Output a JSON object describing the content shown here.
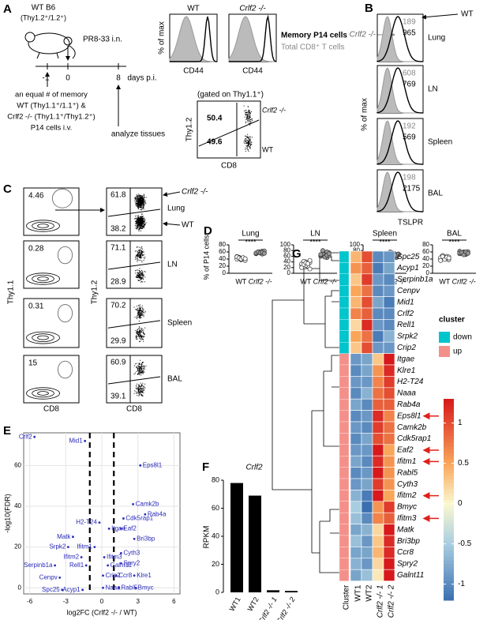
{
  "panels": {
    "A": {
      "label": "A",
      "mouse": "WT B6",
      "mouse_sub": "(Thy1.2⁺/1.2⁺)",
      "treatment": "PR8-33 i.n.",
      "timeline": [
        "-1",
        "0",
        "8"
      ],
      "days": "days p.i.",
      "transfer": [
        "an equal # of memory",
        "WT (Thy1.1⁺/1.1⁺) &",
        "Crlf2 -/- (Thy1.1⁺/Thy1.2⁺)",
        "P14 cells i.v."
      ],
      "analyze": "analyze tissues",
      "hist_titles": [
        "WT",
        "Crlf2 -/-"
      ],
      "hist_ylabel": "% of max",
      "hist_xlabels": [
        "CD44",
        "CD44"
      ],
      "legend": [
        "Memory P14 cells",
        "Total CD8⁺ T cells"
      ],
      "gated": "(gated on Thy1.1⁺)",
      "dot_ylabel": "Thy1.2",
      "dot_xlabel": "CD8",
      "gates": [
        50.4,
        49.6
      ],
      "gate_names": [
        "Crlf2 -/-",
        "WT"
      ]
    },
    "B": {
      "label": "B",
      "legend": [
        "WT",
        "Crlf2 -/-"
      ],
      "ylabel": "% of max",
      "xlabel": "TSLPR",
      "rows": [
        {
          "tissue": "Lung",
          "ko": 189,
          "wt": 965
        },
        {
          "tissue": "LN",
          "ko": 608,
          "wt": 769
        },
        {
          "tissue": "Spleen",
          "ko": 192,
          "wt": 569
        },
        {
          "tissue": "BAL",
          "ko": 198,
          "wt": 2175
        }
      ]
    },
    "C": {
      "label": "C",
      "left": [
        4.46,
        0.28,
        0.31,
        15
      ],
      "right": [
        [
          61.8,
          38.2
        ],
        [
          71.1,
          28.9
        ],
        [
          70.2,
          29.9
        ],
        [
          60.9,
          39.1
        ]
      ],
      "tissues": [
        "Lung",
        "LN",
        "Spleen",
        "BAL"
      ],
      "names": [
        "Crlf2 -/-",
        "WT"
      ],
      "ylabels": [
        "Thy1.1",
        "Thy1.2"
      ],
      "xlabels": [
        "CD8",
        "CD8"
      ]
    },
    "D": {
      "label": "D",
      "ylabel": "% of P14 cells",
      "plots": [
        {
          "tissue": "Lung",
          "sig": "****",
          "ylim": [
            0,
            80
          ],
          "yticks": [
            0,
            20,
            40,
            60,
            80
          ],
          "categories": [
            "WT",
            "Crlf2 -/-"
          ],
          "wt": [
            40,
            45,
            38,
            43,
            41,
            47,
            44,
            39,
            42,
            36,
            46,
            43,
            40,
            44,
            41
          ],
          "ko": [
            55,
            60,
            57,
            62,
            58,
            56,
            59,
            61,
            54,
            63,
            57,
            60,
            58,
            59,
            56
          ]
        },
        {
          "tissue": "LN",
          "sig": "****",
          "ylim": [
            0,
            100
          ],
          "yticks": [
            0,
            20,
            40,
            60,
            80,
            100
          ],
          "categories": [
            "WT",
            "Crlf2 -/-"
          ],
          "wt": [
            30,
            35,
            40,
            25,
            38,
            33,
            42,
            28,
            36,
            45,
            20,
            31,
            37,
            34,
            15
          ],
          "ko": [
            60,
            65,
            70,
            55,
            72,
            63,
            68,
            58,
            75,
            62,
            66,
            80,
            57,
            64,
            69
          ]
        },
        {
          "tissue": "Spleen",
          "sig": "****",
          "ylim": [
            0,
            100
          ],
          "yticks": [
            0,
            20,
            40,
            60,
            80,
            100
          ],
          "categories": [
            "WT",
            "Crlf2 -/-"
          ],
          "wt": [
            30,
            35,
            40,
            25,
            38,
            33,
            42,
            28,
            36,
            45,
            20,
            31,
            37,
            18,
            44
          ],
          "ko": [
            60,
            65,
            70,
            55,
            68,
            63,
            72,
            58,
            62,
            66,
            75,
            61,
            59,
            64,
            67
          ]
        },
        {
          "tissue": "BAL",
          "sig": "****",
          "ylim": [
            0,
            80
          ],
          "yticks": [
            0,
            20,
            40,
            60,
            80
          ],
          "categories": [
            "WT",
            "Crlf2 -/-"
          ],
          "wt": [
            40,
            45,
            42,
            48,
            38,
            44,
            50,
            43,
            41,
            46,
            36,
            47,
            39,
            45,
            43
          ],
          "ko": [
            55,
            58,
            60,
            53,
            57,
            62,
            56,
            59,
            54,
            61,
            57,
            58,
            52,
            60,
            56
          ]
        }
      ]
    },
    "E": {
      "label": "E",
      "ylabel": "-log10(FDR)",
      "xlabel": "log2FC (Crlf2 -/- / WT)",
      "xlim": [
        -6.5,
        6.5
      ],
      "ylim": [
        -3,
        76
      ],
      "xticks": [
        -6,
        -3,
        0,
        3,
        6
      ],
      "yticks": [
        0,
        20,
        40,
        60
      ],
      "thresholds": [
        -1,
        1
      ],
      "color": "#2a2ab8",
      "genes": [
        {
          "name": "Crlf2",
          "x": -5.6,
          "y": 74
        },
        {
          "name": "Mid1",
          "x": -1.4,
          "y": 72
        },
        {
          "name": "Eps8l1",
          "x": 3.2,
          "y": 60
        },
        {
          "name": "Camk2b",
          "x": 2.6,
          "y": 41
        },
        {
          "name": "Rab4a",
          "x": 3.6,
          "y": 36
        },
        {
          "name": "Cdk5rap1",
          "x": 1.8,
          "y": 34
        },
        {
          "name": "H2-T24",
          "x": -0.2,
          "y": 32
        },
        {
          "name": "Itgae",
          "x": 0.6,
          "y": 29
        },
        {
          "name": "Eaf2",
          "x": 1.6,
          "y": 29
        },
        {
          "name": "Bri3bp",
          "x": 2.7,
          "y": 24
        },
        {
          "name": "Matk",
          "x": -2.4,
          "y": 25
        },
        {
          "name": "Srpk2",
          "x": -2.8,
          "y": 20
        },
        {
          "name": "Ifitm1",
          "x": -0.6,
          "y": 20
        },
        {
          "name": "Ifitm2",
          "x": -1.7,
          "y": 15
        },
        {
          "name": "Ifitm3",
          "x": 0.2,
          "y": 15
        },
        {
          "name": "Cyth3",
          "x": 1.6,
          "y": 17
        },
        {
          "name": "Spry2",
          "x": 1.6,
          "y": 12
        },
        {
          "name": "Serpinb1a",
          "x": -3.9,
          "y": 11
        },
        {
          "name": "Rell1",
          "x": -1.3,
          "y": 11
        },
        {
          "name": "Galnt11",
          "x": 0.5,
          "y": 11
        },
        {
          "name": "Cenpv",
          "x": -3.5,
          "y": 5
        },
        {
          "name": "Crip2",
          "x": 0.1,
          "y": 6
        },
        {
          "name": "Ccr8",
          "x": 1.2,
          "y": 6
        },
        {
          "name": "Klre1",
          "x": 2.7,
          "y": 6
        },
        {
          "name": "Spc25",
          "x": -3.3,
          "y": -1
        },
        {
          "name": "Acyp1",
          "x": -1.6,
          "y": -1
        },
        {
          "name": "Naaa",
          "x": 0.1,
          "y": 0
        },
        {
          "name": "Rabl5",
          "x": 1.4,
          "y": 0
        },
        {
          "name": "Bmyc",
          "x": 2.8,
          "y": 0
        }
      ]
    },
    "F": {
      "label": "F",
      "title": "Crlf2",
      "ylabel": "RPKM",
      "categories": [
        "WT1",
        "WT2",
        "Crlf2 -/- 1",
        "Crlf2 -/- 2"
      ],
      "values": [
        78,
        69,
        1.5,
        1
      ],
      "ylim": [
        0,
        100
      ],
      "yticks": [
        0,
        20,
        40,
        60,
        80
      ],
      "color": "#000000"
    },
    "G": {
      "label": "G",
      "columns": [
        "Cluster",
        "WT1",
        "WT2",
        "Crlf2 -/- 1",
        "Crlf2 -/- 2"
      ],
      "legend_title": "cluster",
      "clusters": [
        {
          "name": "down",
          "color": "#00c5cd"
        },
        {
          "name": "up",
          "color": "#f4908a"
        }
      ],
      "colorbar": {
        "lim": [
          -1.2,
          1.3
        ],
        "ticks": [
          1,
          0.5,
          0,
          -0.5,
          -1
        ]
      },
      "arrowed": [
        14,
        17,
        18,
        21,
        23
      ],
      "arrow_color": "#e0201b",
      "genes": [
        {
          "name": "Spc25",
          "cluster": "down",
          "values": [
            0.4,
            1.0,
            -1.0,
            -0.9
          ]
        },
        {
          "name": "Acyp1",
          "cluster": "down",
          "values": [
            0.6,
            0.9,
            -1.1,
            -0.8
          ]
        },
        {
          "name": "Serpinb1a",
          "cluster": "down",
          "values": [
            0.3,
            1.1,
            -0.9,
            -1.0
          ]
        },
        {
          "name": "Cenpv",
          "cluster": "down",
          "values": [
            0.5,
            0.8,
            -1.0,
            -0.9
          ]
        },
        {
          "name": "Mid1",
          "cluster": "down",
          "values": [
            0.4,
            1.0,
            -0.8,
            -1.1
          ]
        },
        {
          "name": "Crlf2",
          "cluster": "down",
          "values": [
            0.7,
            0.9,
            -1.0,
            -1.0
          ]
        },
        {
          "name": "Rell1",
          "cluster": "down",
          "values": [
            0.2,
            1.2,
            -0.9,
            -1.0
          ]
        },
        {
          "name": "Srpk2",
          "cluster": "down",
          "values": [
            0.5,
            0.8,
            -1.1,
            -0.7
          ]
        },
        {
          "name": "Crip2",
          "cluster": "down",
          "values": [
            0.3,
            1.0,
            -0.9,
            -0.9
          ]
        },
        {
          "name": "Itgae",
          "cluster": "up",
          "values": [
            -0.9,
            -0.8,
            0.3,
            1.3
          ]
        },
        {
          "name": "Klre1",
          "cluster": "up",
          "values": [
            -1.0,
            -0.8,
            0.6,
            1.2
          ]
        },
        {
          "name": "H2-T24",
          "cluster": "up",
          "values": [
            -0.9,
            -0.9,
            0.7,
            1.1
          ]
        },
        {
          "name": "Naaa",
          "cluster": "up",
          "values": [
            -1.0,
            -0.7,
            0.8,
            1.0
          ]
        },
        {
          "name": "Rab4a",
          "cluster": "up",
          "values": [
            -0.8,
            -1.0,
            0.9,
            0.9
          ]
        },
        {
          "name": "Eps8l1",
          "cluster": "up",
          "values": [
            -1.0,
            -0.9,
            1.2,
            0.7
          ]
        },
        {
          "name": "Camk2b",
          "cluster": "up",
          "values": [
            -0.9,
            -1.0,
            1.1,
            0.8
          ]
        },
        {
          "name": "Cdk5rap1",
          "cluster": "up",
          "values": [
            -1.0,
            -0.8,
            1.0,
            0.8
          ]
        },
        {
          "name": "Eaf2",
          "cluster": "up",
          "values": [
            -0.9,
            -0.9,
            1.3,
            0.5
          ]
        },
        {
          "name": "Ifitm1",
          "cluster": "up",
          "values": [
            -0.8,
            -1.0,
            1.2,
            0.6
          ]
        },
        {
          "name": "Rabl5",
          "cluster": "up",
          "values": [
            -1.0,
            -0.9,
            1.3,
            0.6
          ]
        },
        {
          "name": "Cyth3",
          "cluster": "up",
          "values": [
            -0.9,
            -0.8,
            1.1,
            0.6
          ]
        },
        {
          "name": "Ifitm2",
          "cluster": "up",
          "values": [
            -0.7,
            -1.1,
            1.3,
            0.5
          ]
        },
        {
          "name": "Bmyc",
          "cluster": "up",
          "values": [
            -0.5,
            -1.2,
            0.6,
            1.1
          ]
        },
        {
          "name": "Ifitm3",
          "cluster": "up",
          "values": [
            -0.6,
            -1.0,
            0.7,
            0.9
          ]
        },
        {
          "name": "Matk",
          "cluster": "up",
          "values": [
            -0.8,
            -0.7,
            0.2,
            1.3
          ]
        },
        {
          "name": "Bri3bp",
          "cluster": "up",
          "values": [
            -0.6,
            -0.9,
            0.3,
            1.2
          ]
        },
        {
          "name": "Ccr8",
          "cluster": "up",
          "values": [
            -0.8,
            -0.8,
            0.4,
            1.2
          ]
        },
        {
          "name": "Spry2",
          "cluster": "up",
          "values": [
            -0.7,
            -0.9,
            0.2,
            1.4
          ]
        },
        {
          "name": "Galnt11",
          "cluster": "up",
          "values": [
            -0.8,
            -0.6,
            0.1,
            1.3
          ]
        }
      ]
    }
  }
}
